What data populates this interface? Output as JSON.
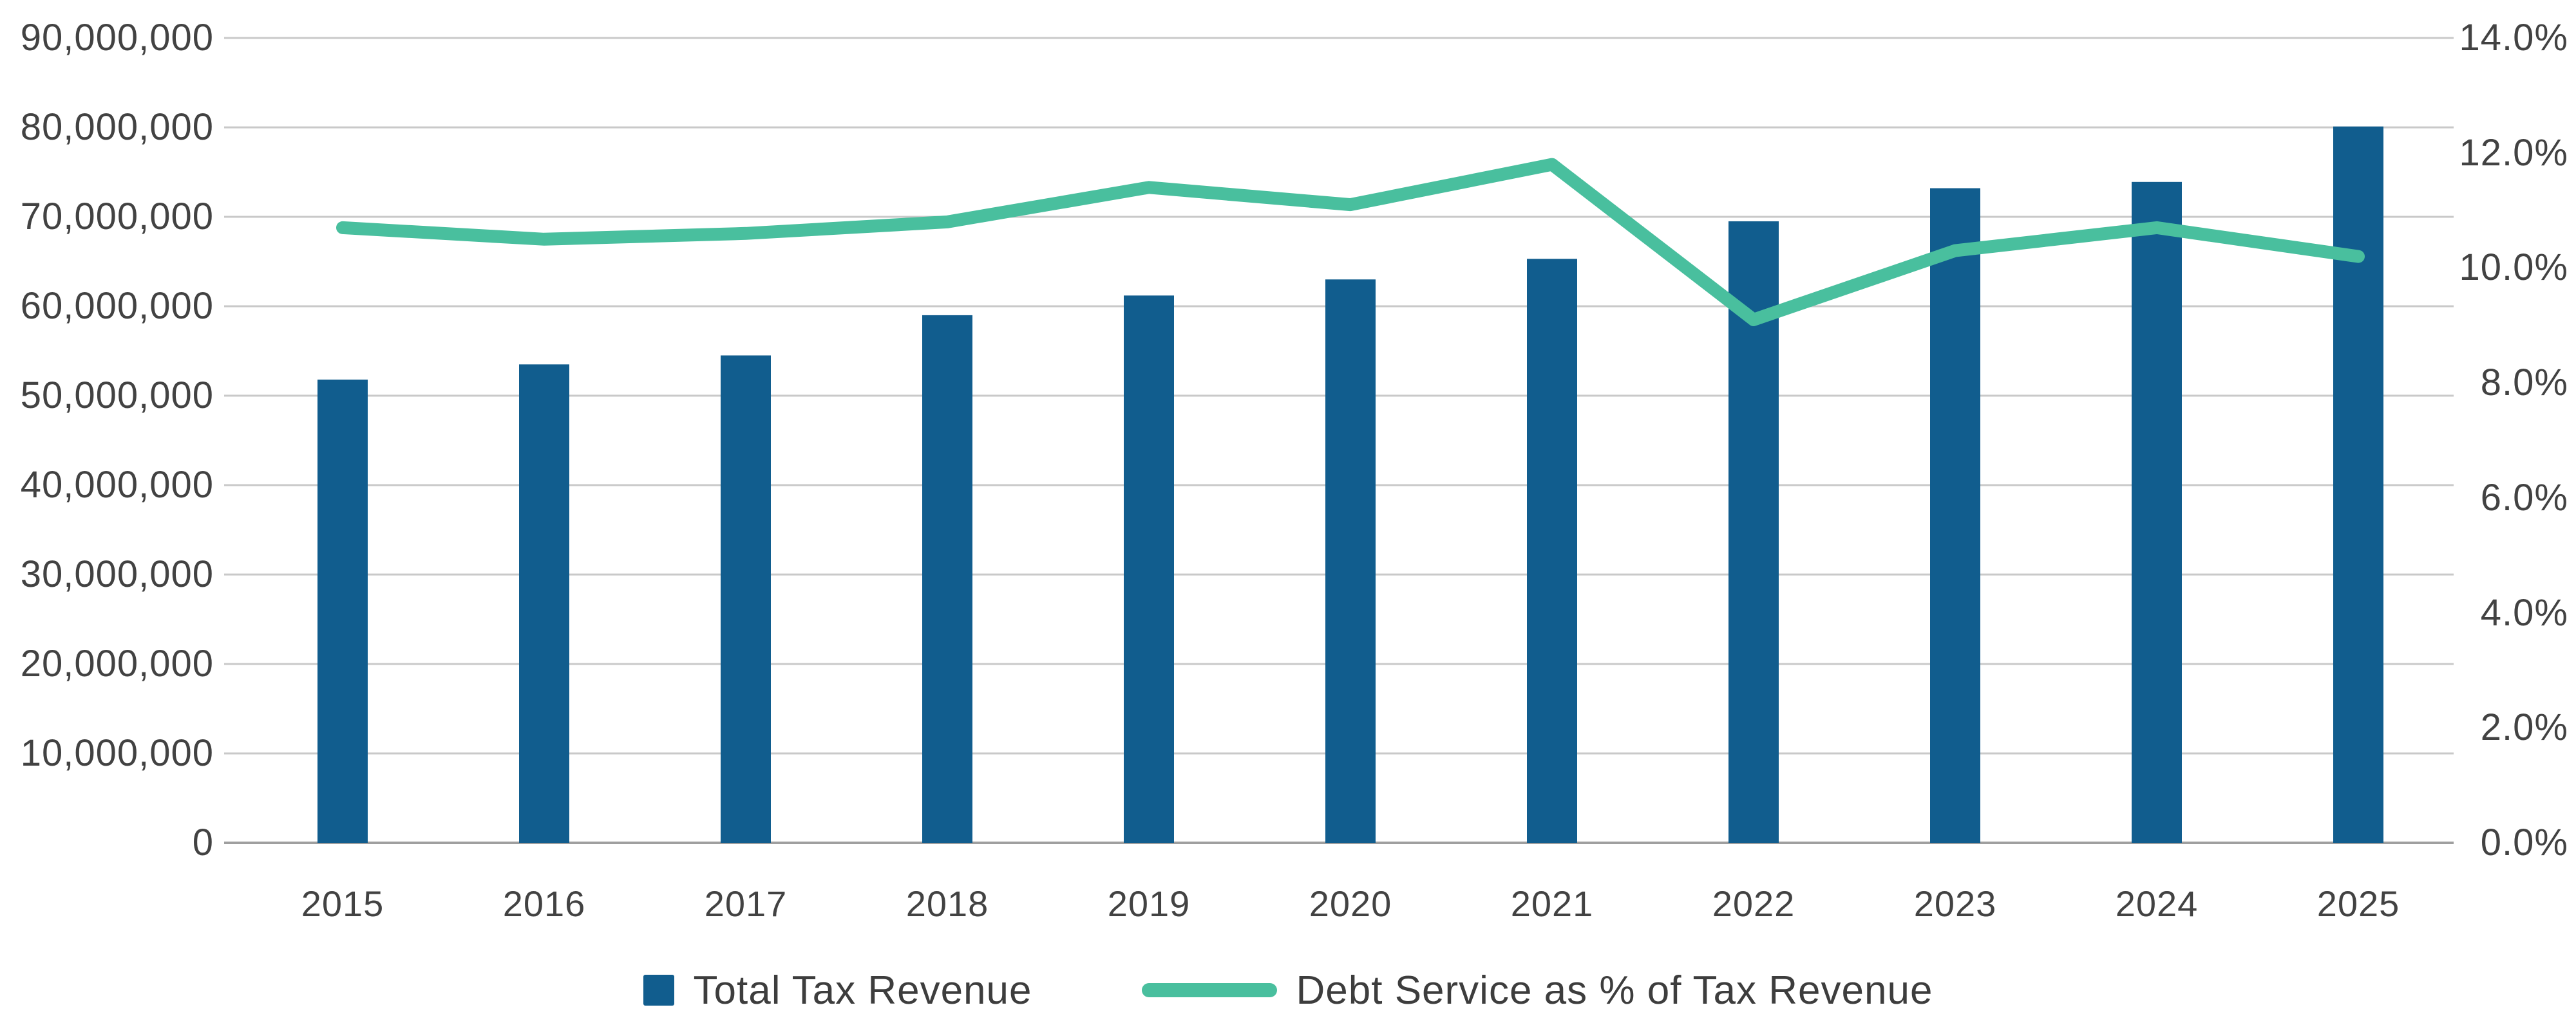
{
  "chart_data": {
    "type": "bar",
    "title": "",
    "categories": [
      "2015",
      "2016",
      "2017",
      "2018",
      "2019",
      "2020",
      "2021",
      "2022",
      "2023",
      "2024",
      "2025"
    ],
    "series": [
      {
        "name": "Total Tax Revenue",
        "kind": "bar",
        "axis": "left",
        "color": "#115d8e",
        "values": [
          51800000,
          53500000,
          54500000,
          59000000,
          61200000,
          63000000,
          65300000,
          69500000,
          73200000,
          73900000,
          80100000
        ]
      },
      {
        "name": "Debt Service as % of Tax Revenue",
        "kind": "line",
        "axis": "right",
        "color": "#49bf9e",
        "values": [
          10.7,
          10.5,
          10.6,
          10.8,
          11.4,
          11.1,
          11.8,
          9.1,
          10.3,
          10.7,
          10.2
        ]
      }
    ],
    "left_axis": {
      "min": 0,
      "max": 90000000,
      "tick_labels": [
        "90,000,000",
        "80,000,000",
        "70,000,000",
        "60,000,000",
        "50,000,000",
        "40,000,000",
        "30,000,000",
        "20,000,000",
        "10,000,000",
        "0"
      ],
      "tick_values": [
        90000000,
        80000000,
        70000000,
        60000000,
        50000000,
        40000000,
        30000000,
        20000000,
        10000000,
        0
      ]
    },
    "right_axis": {
      "min": 0,
      "max": 14,
      "tick_labels": [
        "14.0%",
        "12.0%",
        "10.0%",
        "8.0%",
        "6.0%",
        "4.0%",
        "2.0%",
        "0.0%"
      ],
      "tick_values": [
        14,
        12,
        10,
        8,
        6,
        4,
        2,
        0
      ]
    },
    "grid": true,
    "legend_position": "bottom"
  },
  "legend": {
    "items": [
      {
        "label": "Total Tax Revenue",
        "swatch": "square",
        "color": "#115d8e"
      },
      {
        "label": "Debt Service as % of Tax Revenue",
        "swatch": "line",
        "color": "#49bf9e"
      }
    ]
  },
  "colors": {
    "bar": "#115d8e",
    "line": "#49bf9e",
    "grid": "#c9c9c9",
    "baseline": "#9f9f9f",
    "text": "#424242",
    "background": "#ffffff"
  }
}
